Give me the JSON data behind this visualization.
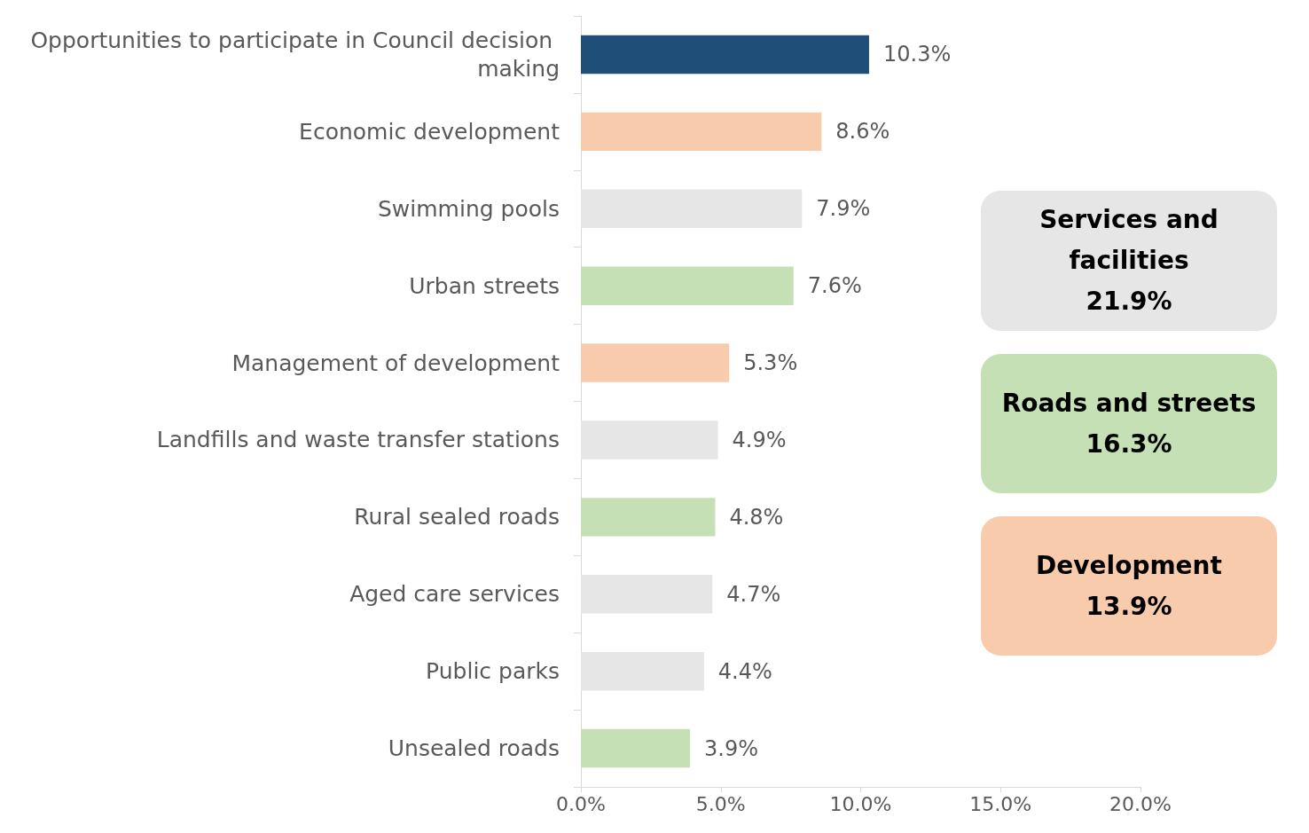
{
  "chart_data": {
    "type": "bar",
    "orientation": "horizontal",
    "stacked": true,
    "categories": [
      "Opportunities to participate in Council decision making",
      "Economic development",
      "Swimming pools",
      "Urban streets",
      "Management of development",
      "Landfills and waste transfer stations",
      "Rural sealed roads",
      "Aged care services",
      "Public parks",
      "Unsealed roads"
    ],
    "series": [
      {
        "color": "#1f4e79",
        "values": [
          10.3,
          null,
          null,
          null,
          null,
          null,
          null,
          null,
          null,
          null
        ],
        "value_labels": [
          "10.3%",
          null,
          null,
          null,
          null,
          null,
          null,
          null,
          null,
          null
        ]
      },
      {
        "color": "#e7e6e6",
        "values": [
          null,
          null,
          7.9,
          null,
          null,
          4.9,
          null,
          4.7,
          4.4,
          null
        ],
        "value_labels": [
          null,
          null,
          "7.9%",
          null,
          null,
          "4.9%",
          null,
          "4.7%",
          "4.4%",
          null
        ]
      },
      {
        "color": "#c5e0b4",
        "values": [
          null,
          null,
          null,
          7.6,
          null,
          null,
          4.8,
          null,
          null,
          3.9
        ],
        "value_labels": [
          null,
          null,
          null,
          "7.6%",
          null,
          null,
          "4.8%",
          null,
          null,
          "3.9%"
        ]
      },
      {
        "color": "#f8cbad",
        "values": [
          null,
          8.6,
          null,
          null,
          5.3,
          null,
          null,
          null,
          null,
          null
        ],
        "value_labels": [
          null,
          "8.6%",
          null,
          null,
          "5.3%",
          null,
          null,
          null,
          null,
          null
        ]
      }
    ],
    "annotations": [
      "Services and facilities",
      "21.9%",
      "Roads and streets",
      "16.3%",
      "Development",
      "13.9%"
    ],
    "xlim": [
      0,
      20
    ],
    "xticks": [
      {
        "value": 0,
        "label": "0.0%"
      },
      {
        "value": 5,
        "label": "5.0%"
      },
      {
        "value": 10,
        "label": "10.0%"
      },
      {
        "value": 15,
        "label": "15.0%"
      },
      {
        "value": 20,
        "label": "20.0%"
      }
    ],
    "grid": false
  }
}
